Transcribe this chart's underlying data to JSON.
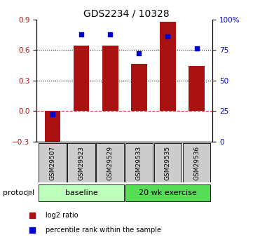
{
  "title": "GDS2234 / 10328",
  "samples": [
    "GSM29507",
    "GSM29523",
    "GSM29529",
    "GSM29533",
    "GSM29535",
    "GSM29536"
  ],
  "log2_ratio": [
    -0.33,
    0.64,
    0.64,
    0.46,
    0.88,
    0.44
  ],
  "percentile_rank": [
    22,
    88,
    88,
    72,
    86,
    76
  ],
  "bar_color": "#aa1111",
  "dot_color": "#0000cc",
  "ylim_left": [
    -0.3,
    0.9
  ],
  "yticks_left": [
    -0.3,
    0.0,
    0.3,
    0.6,
    0.9
  ],
  "ylim_right": [
    0,
    100
  ],
  "yticks_right": [
    0,
    25,
    50,
    75,
    100
  ],
  "ytick_labels_right": [
    "0",
    "25",
    "50",
    "75",
    "100%"
  ],
  "hlines": [
    0.3,
    0.6
  ],
  "zero_line_color": "#cc3333",
  "groups": [
    {
      "label": "baseline",
      "color": "#bbffbb",
      "start": 0,
      "end": 2
    },
    {
      "label": "20 wk exercise",
      "color": "#55dd55",
      "start": 3,
      "end": 5
    }
  ],
  "protocol_label": "protocol",
  "legend_items": [
    {
      "label": "log2 ratio",
      "color": "#aa1111"
    },
    {
      "label": "percentile rank within the sample",
      "color": "#0000cc"
    }
  ],
  "bg_color": "#ffffff",
  "sample_box_color": "#cccccc",
  "bar_width": 0.55
}
